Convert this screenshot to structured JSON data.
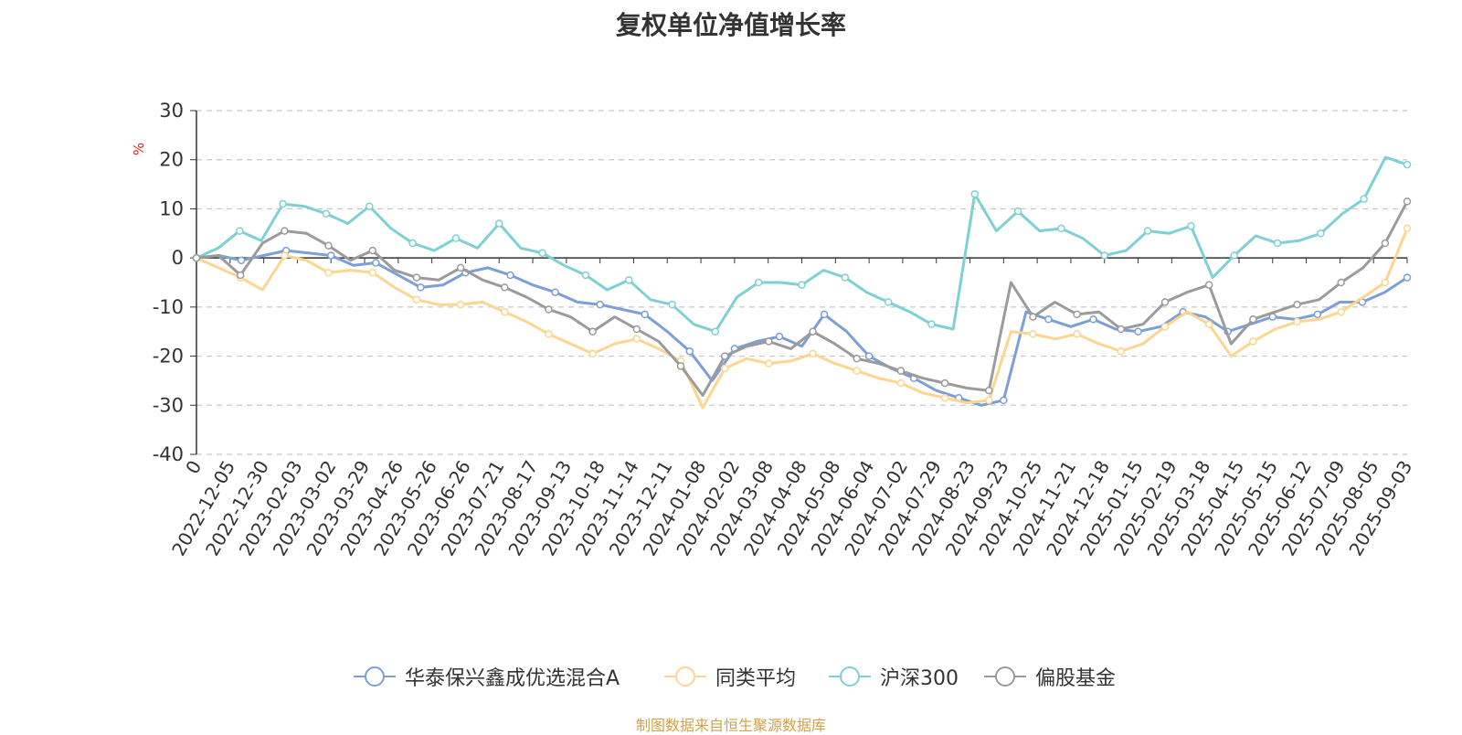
{
  "title": "复权单位净值增长率",
  "source_note": "制图数据来自恒生聚源数据库",
  "chart_data": {
    "type": "line",
    "title": "复权单位净值增长率",
    "ylabel": "%",
    "xlabel": "",
    "ylim": [
      -40,
      30
    ],
    "yticks": [
      30,
      20,
      10,
      0,
      -10,
      -20,
      -30,
      -40
    ],
    "grid": true,
    "legend_position": "bottom",
    "x_tick_labels": [
      "0",
      "2022-12-05",
      "2022-12-30",
      "2023-02-03",
      "2023-03-02",
      "2023-03-29",
      "2023-04-26",
      "2023-05-26",
      "2023-06-26",
      "2023-07-21",
      "2023-08-17",
      "2023-09-13",
      "2023-10-18",
      "2023-11-14",
      "2023-12-11",
      "2024-01-08",
      "2024-02-02",
      "2024-03-08",
      "2024-04-08",
      "2024-05-08",
      "2024-06-04",
      "2024-07-02",
      "2024-07-29",
      "2024-08-23",
      "2024-09-23",
      "2024-10-25",
      "2024-11-21",
      "2024-12-18",
      "2025-01-15",
      "2025-02-19",
      "2025-03-18",
      "2025-04-15",
      "2025-05-15",
      "2025-06-12",
      "2025-07-09",
      "2025-08-05",
      "2025-09-03"
    ],
    "series": [
      {
        "name": "华泰保兴鑫成优选混合A",
        "color": "#7b9fd6",
        "values": [
          0,
          0.5,
          -0.5,
          0.5,
          1.5,
          1.0,
          0.5,
          -1.5,
          -1.0,
          -3.5,
          -6.0,
          -5.5,
          -3.0,
          -2.0,
          -3.5,
          -5.5,
          -7.0,
          -9.0,
          -9.5,
          -10.5,
          -11.5,
          -15.0,
          -19.0,
          -25.0,
          -18.5,
          -17.0,
          -16.0,
          -18.0,
          -11.5,
          -15.0,
          -20.0,
          -22.5,
          -24.5,
          -27.0,
          -28.5,
          -30.0,
          -29.0,
          -11.0,
          -12.5,
          -14.0,
          -12.5,
          -14.5,
          -15.0,
          -14.0,
          -11.0,
          -12.0,
          -15.0,
          -13.5,
          -12.0,
          -12.5,
          -11.5,
          -9.0,
          -9.0,
          -7.0,
          -4.0
        ]
      },
      {
        "name": "同类平均",
        "color": "#fcd590",
        "values": [
          0,
          -2.0,
          -4.0,
          -6.5,
          0.5,
          -0.5,
          -3.0,
          -2.5,
          -3.0,
          -6.0,
          -8.5,
          -9.5,
          -9.5,
          -9.0,
          -11.0,
          -13.0,
          -15.5,
          -17.5,
          -19.5,
          -17.5,
          -16.5,
          -18.5,
          -21.0,
          -30.5,
          -22.5,
          -20.5,
          -21.5,
          -21.0,
          -19.5,
          -21.5,
          -23.0,
          -24.5,
          -25.5,
          -27.5,
          -28.5,
          -29.5,
          -29.0,
          -15.0,
          -15.5,
          -16.5,
          -15.5,
          -17.5,
          -19.0,
          -17.5,
          -14.0,
          -11.0,
          -13.5,
          -20.0,
          -17.0,
          -14.5,
          -13.0,
          -12.5,
          -11.0,
          -8.0,
          -5.0,
          6.0
        ]
      },
      {
        "name": "沪深300",
        "color": "#7fd0d4",
        "values": [
          0,
          2.0,
          5.5,
          3.5,
          11.0,
          10.5,
          9.0,
          7.0,
          10.5,
          6.0,
          3.0,
          1.5,
          4.0,
          2.0,
          7.0,
          2.0,
          1.0,
          -1.5,
          -3.5,
          -6.5,
          -4.5,
          -8.5,
          -9.5,
          -13.5,
          -15.0,
          -8.0,
          -5.0,
          -5.0,
          -5.5,
          -2.5,
          -4.0,
          -7.0,
          -9.0,
          -11.0,
          -13.5,
          -14.5,
          13.0,
          5.5,
          9.5,
          5.5,
          6.0,
          4.0,
          0.5,
          1.5,
          5.5,
          5.0,
          6.5,
          -4.0,
          0.5,
          4.5,
          3.0,
          3.5,
          5.0,
          9.0,
          12.0,
          20.5,
          19.0
        ]
      },
      {
        "name": "偏股基金",
        "color": "#9b9b9b",
        "values": [
          0,
          0.5,
          -3.5,
          3.0,
          5.5,
          5.0,
          2.5,
          -0.5,
          1.5,
          -2.5,
          -4.0,
          -4.5,
          -2.0,
          -4.5,
          -6.0,
          -8.0,
          -10.5,
          -12.0,
          -15.0,
          -12.0,
          -14.5,
          -17.0,
          -22.0,
          -28.0,
          -20.0,
          -18.0,
          -17.0,
          -18.5,
          -15.0,
          -17.5,
          -20.5,
          -21.5,
          -23.0,
          -24.5,
          -25.5,
          -26.5,
          -27.0,
          -5.0,
          -12.0,
          -9.0,
          -11.5,
          -11.0,
          -14.5,
          -13.5,
          -9.0,
          -7.0,
          -5.5,
          -17.5,
          -12.5,
          -11.0,
          -9.5,
          -8.5,
          -5.0,
          -2.0,
          3.0,
          11.5
        ]
      }
    ]
  }
}
